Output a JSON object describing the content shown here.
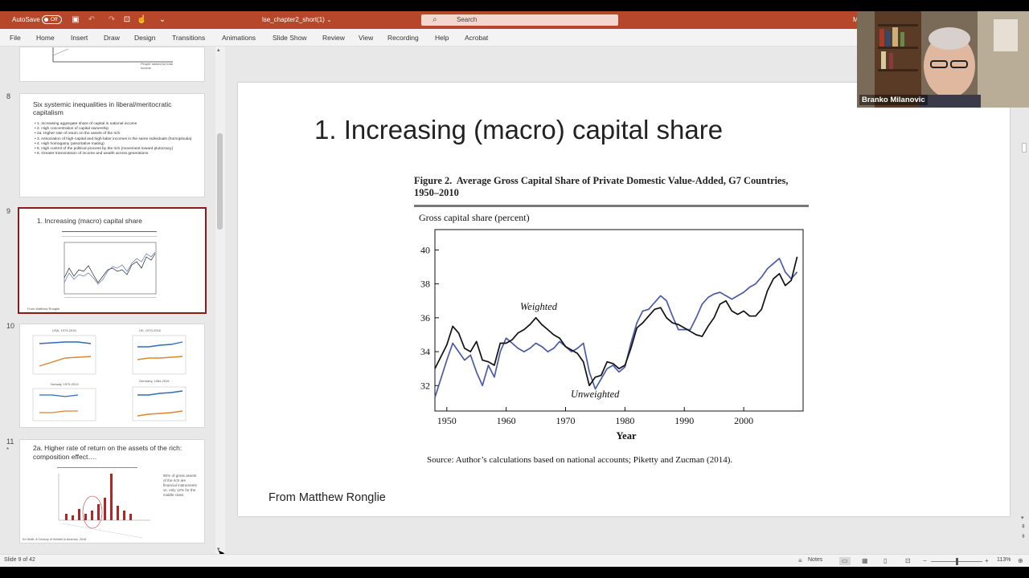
{
  "titlebar": {
    "autosave_label": "AutoSave",
    "autosave_state": "Off",
    "filename": "lse_chapter2_short(1)",
    "filename_chevron": "⌄",
    "search_placeholder": "Search",
    "user_initial": "M"
  },
  "ribbon": {
    "tabs": [
      "File",
      "Home",
      "Insert",
      "Draw",
      "Design",
      "Transitions",
      "Animations",
      "Slide Show",
      "Review",
      "View",
      "Recording",
      "Help",
      "Acrobat"
    ]
  },
  "thumbnails": {
    "numbers": [
      "8",
      "9",
      "10",
      "11"
    ],
    "slide7_caption": "People ranked by total income",
    "slide8_title": "Six systemic inequalities in liberal/meritocratic capitalism",
    "slide8_bullets": [
      "• 1. Increasing aggregate share of capital in national income",
      "• 2. High concentration of capital ownership",
      "• 2a. Higher rate of return on the assets of the rich",
      "• 3. Association of high-capital and high-labor incomes in the same individuals (homoploutia)",
      "• 4. High homogamy (assortative mating)",
      "• 5. High control of the political process by the rich (movement toward plutocracy)",
      "• 6. Greater transmission of income and wealth across generations"
    ],
    "slide9_title": "1. Increasing (macro) capital share",
    "slide9_from": "From Matthew Ronglie",
    "slide10_titles": [
      "USA, 1974-2016",
      "UK, 1970-2016",
      "Norway, 1979-2013",
      "Germany, 1984-2015"
    ],
    "slide11_title": "2a. Higher rate of return on the assets of the rich:  composition effect….",
    "slide11_note": "80% of gross assets of the rich are financial instruments vs. only 12% for the middle class",
    "slide11_source": "Ed Wolff, A Century of Wealth in America, 2018"
  },
  "slide": {
    "title": "1. Increasing (macro) capital share",
    "from": "From Matthew Ronglie"
  },
  "figure": {
    "caption_bold": "Figure 2.",
    "caption_line1": "Average Gross Capital Share of Private Domestic Value-Added, G7 Countries,",
    "caption_line2": "1950–2010",
    "source": "Source: Author’s calculations based on national accounts; Piketty and Zucman (2014)."
  },
  "chart_data": {
    "type": "line",
    "title": "",
    "ylabel": "Gross capital share (percent)",
    "xlabel": "Year",
    "xlim": [
      1948,
      2010
    ],
    "ylim": [
      30.5,
      41.2
    ],
    "xticks": [
      1950,
      1960,
      1970,
      1980,
      1990,
      2000
    ],
    "yticks": [
      32,
      34,
      36,
      38,
      40
    ],
    "annotations": [
      "Weighted",
      "Unweighted"
    ],
    "series": [
      {
        "name": "Weighted",
        "color": "#111111",
        "x": [
          1948,
          1950,
          1951,
          1952,
          1953,
          1954,
          1955,
          1956,
          1957,
          1958,
          1959,
          1960,
          1961,
          1962,
          1963,
          1964,
          1965,
          1966,
          1967,
          1968,
          1969,
          1970,
          1971,
          1972,
          1973,
          1974,
          1975,
          1976,
          1977,
          1978,
          1979,
          1980,
          1981,
          1982,
          1983,
          1984,
          1985,
          1986,
          1987,
          1988,
          1989,
          1990,
          1991,
          1992,
          1993,
          1994,
          1995,
          1996,
          1997,
          1998,
          1999,
          2000,
          2001,
          2002,
          2003,
          2004,
          2005,
          2006,
          2007,
          2008,
          2009
        ],
        "y": [
          33.0,
          34.4,
          35.5,
          35.1,
          34.2,
          34.0,
          34.6,
          33.5,
          33.4,
          33.2,
          34.5,
          34.5,
          34.7,
          35.1,
          35.3,
          35.6,
          36.0,
          35.6,
          35.3,
          35.0,
          34.8,
          34.3,
          34.1,
          33.9,
          33.4,
          32.0,
          32.5,
          32.6,
          33.4,
          33.3,
          33.0,
          33.2,
          34.2,
          35.4,
          35.7,
          36.1,
          36.5,
          36.6,
          36.0,
          35.7,
          35.6,
          35.4,
          35.2,
          35.0,
          34.9,
          35.5,
          36.0,
          36.8,
          37.0,
          36.4,
          36.2,
          36.4,
          36.1,
          36.1,
          36.5,
          37.6,
          38.3,
          38.6,
          37.9,
          38.2,
          39.6
        ]
      },
      {
        "name": "Unweighted",
        "color": "#4a5aa8",
        "x": [
          1948,
          1950,
          1951,
          1952,
          1953,
          1954,
          1955,
          1956,
          1957,
          1958,
          1959,
          1960,
          1961,
          1962,
          1963,
          1964,
          1965,
          1966,
          1967,
          1968,
          1969,
          1970,
          1971,
          1972,
          1973,
          1974,
          1975,
          1976,
          1977,
          1978,
          1979,
          1980,
          1981,
          1982,
          1983,
          1984,
          1985,
          1986,
          1987,
          1988,
          1989,
          1990,
          1991,
          1992,
          1993,
          1994,
          1995,
          1996,
          1997,
          1998,
          1999,
          2000,
          2001,
          2002,
          2003,
          2004,
          2005,
          2006,
          2007,
          2008,
          2009
        ],
        "y": [
          31.3,
          33.5,
          34.5,
          34.0,
          33.5,
          33.8,
          32.8,
          32.0,
          33.2,
          32.5,
          34.0,
          34.8,
          34.5,
          34.2,
          34.0,
          34.2,
          34.5,
          34.3,
          34.0,
          34.2,
          34.6,
          34.3,
          34.0,
          34.2,
          34.5,
          32.8,
          31.8,
          32.4,
          33.0,
          33.2,
          32.8,
          33.1,
          34.5,
          35.7,
          36.4,
          36.5,
          36.9,
          37.3,
          37.0,
          36.1,
          35.3,
          35.3,
          35.3,
          36.0,
          36.8,
          37.2,
          37.4,
          37.5,
          37.3,
          37.1,
          37.3,
          37.5,
          37.8,
          38.0,
          38.4,
          38.9,
          39.2,
          39.5,
          38.7,
          38.3,
          38.7
        ]
      }
    ]
  },
  "video": {
    "participant_name": "Branko Milanovic"
  },
  "statusbar": {
    "slide_indicator": "Slide 9 of 42",
    "notes_label": "Notes",
    "zoom": "113%"
  },
  "colors": {
    "accent": "#b7472a",
    "selected_thumb": "#8b1a1a"
  }
}
